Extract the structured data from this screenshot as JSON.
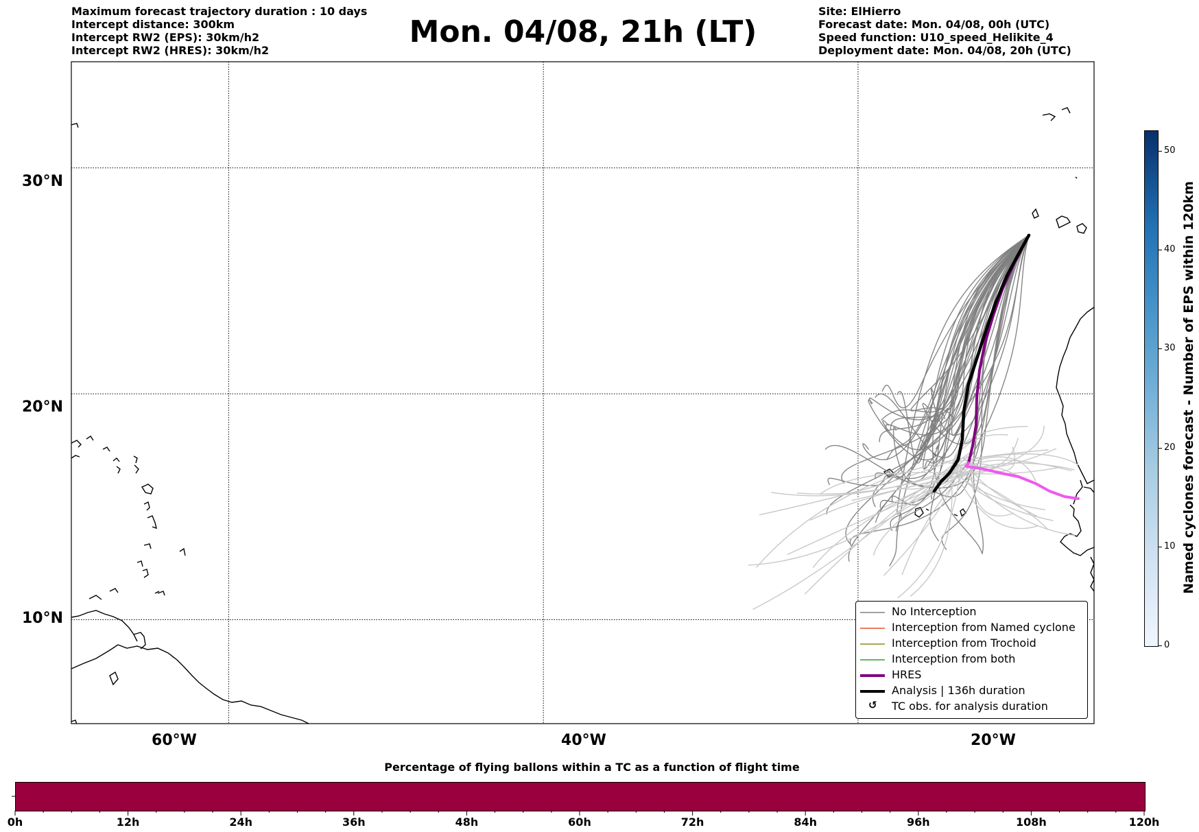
{
  "header": {
    "left_lines": [
      "Maximum forecast trajectory duration : 10 days",
      "Intercept distance: 300km",
      "Intercept RW2 (EPS):  30km/h2",
      "Intercept RW2 (HRES): 30km/h2"
    ],
    "title": "Mon. 04/08, 21h (LT)",
    "right_lines": [
      "Site: ElHierro",
      "Forecast date: Mon. 04/08, 00h (UTC)",
      "Speed function: U10_speed_Helikite_4",
      "Deployment date: Mon. 04/08, 20h (UTC)"
    ]
  },
  "map": {
    "lon_range": [
      -70,
      30
    ],
    "lat_range": [
      5.4,
      34.7
    ],
    "lat_labels": [
      "30°N",
      "20°N",
      "10°N"
    ],
    "lon_labels": [
      "60°W",
      "40°W",
      "20°W"
    ],
    "colors": {
      "no_interception": "#808080",
      "ensemble_light": "#c8c8c8",
      "hres": "#800080",
      "hres_late": "#ee5aee",
      "analysis": "#000000"
    }
  },
  "legend": {
    "items": [
      {
        "label": "No Interception",
        "color": "#808080",
        "style": "thin"
      },
      {
        "label": "Interception from Named cyclone",
        "color": "#e8502a",
        "style": "thin"
      },
      {
        "label": "Interception from Trochoid",
        "color": "#8a8a1a",
        "style": "thin"
      },
      {
        "label": "Interception from both",
        "color": "#2ca02c",
        "style": "thin"
      },
      {
        "label": "HRES",
        "color": "#800080",
        "style": "thick"
      },
      {
        "label": "Analysis | 136h duration",
        "color": "#000000",
        "style": "thick"
      },
      {
        "label": "TC obs. for analysis duration",
        "color": "#000000",
        "style": "marker"
      }
    ],
    "marker_glyph": "↺"
  },
  "colorbar": {
    "title": "Named cyclones forecast - Number of EPS within 120km",
    "ticks": [
      "0",
      "10",
      "20",
      "30",
      "40",
      "50"
    ],
    "range": [
      0,
      52
    ]
  },
  "bottom": {
    "title": "Percentage of flying ballons within a TC as a function of flight time",
    "bar_color": "#9b003e",
    "ticks": [
      "0h",
      "12h",
      "24h",
      "36h",
      "48h",
      "60h",
      "72h",
      "84h",
      "96h",
      "108h",
      "120h"
    ]
  }
}
